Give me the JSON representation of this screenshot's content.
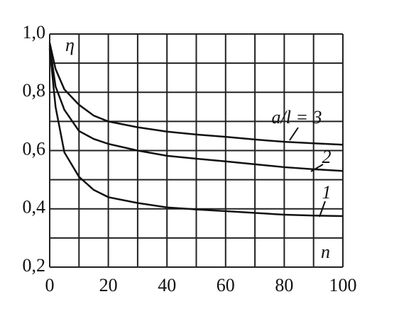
{
  "chart_data": {
    "type": "line",
    "x": [
      0,
      2,
      5,
      10,
      15,
      20,
      30,
      40,
      50,
      60,
      70,
      80,
      90,
      100
    ],
    "series": [
      {
        "name": "a/l = 3",
        "color": "#111111",
        "values": [
          0.97,
          0.88,
          0.81,
          0.757,
          0.72,
          0.7,
          0.68,
          0.665,
          0.655,
          0.647,
          0.638,
          0.63,
          0.625,
          0.62
        ]
      },
      {
        "name": "2",
        "color": "#111111",
        "values": [
          0.96,
          0.82,
          0.74,
          0.667,
          0.64,
          0.623,
          0.6,
          0.582,
          0.572,
          0.563,
          0.553,
          0.543,
          0.536,
          0.53
        ]
      },
      {
        "name": "1",
        "color": "#111111",
        "values": [
          0.95,
          0.75,
          0.594,
          0.51,
          0.465,
          0.44,
          0.42,
          0.405,
          0.398,
          0.392,
          0.386,
          0.38,
          0.377,
          0.375
        ]
      }
    ],
    "y_axis_label": "η",
    "x_axis_label": "n",
    "xlim": [
      0,
      100
    ],
    "xticks": [
      0,
      20,
      40,
      60,
      80,
      100
    ],
    "xgrid_minor": [
      10,
      30,
      50,
      70,
      90
    ],
    "ylim": [
      0.2,
      1.0
    ],
    "yticks": [
      {
        "value": 0.2,
        "label": "0,2"
      },
      {
        "value": 0.4,
        "label": "0,4"
      },
      {
        "value": 0.6,
        "label": "0,6"
      },
      {
        "value": 0.8,
        "label": "0,8"
      },
      {
        "value": 1.0,
        "label": "1,0"
      }
    ],
    "ygrid_minor": [
      0.3,
      0.5,
      0.7,
      0.9
    ],
    "grid": true
  }
}
